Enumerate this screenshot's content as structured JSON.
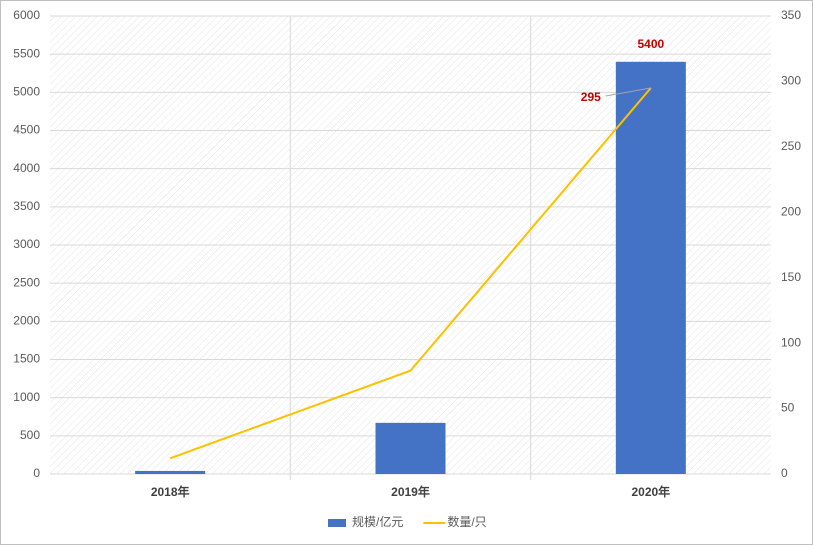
{
  "chart_data": {
    "type": "bar_line",
    "categories": [
      "2018年",
      "2019年",
      "2020年"
    ],
    "series": [
      {
        "name": "规模/亿元",
        "type": "bar",
        "color": "#4472c4",
        "values": [
          40,
          670,
          5400
        ],
        "data_labels": "last"
      },
      {
        "name": "数量/只",
        "type": "line",
        "axis": "y2",
        "color": "#ffc000",
        "values": [
          12,
          79,
          295
        ],
        "data_labels": "last"
      }
    ],
    "ylim": [
      0,
      6000
    ],
    "yticks": [
      0,
      500,
      1000,
      1500,
      2000,
      2500,
      3000,
      3500,
      4000,
      4500,
      5000,
      5500,
      6000
    ],
    "y2lim": [
      0,
      350
    ],
    "y2ticks": [
      0,
      50,
      100,
      150,
      200,
      250,
      300,
      350
    ],
    "grid": true,
    "legend": "bottom",
    "label_color": "#c00000"
  }
}
